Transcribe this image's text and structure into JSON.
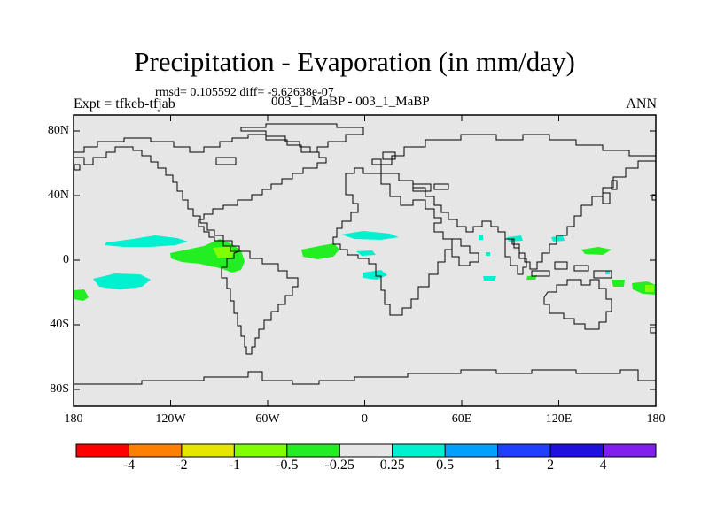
{
  "title": "Precipitation - Evaporation (in mm/day)",
  "stats_line": "rmsd= 0.105592 diff= -9.62638e-07",
  "subtitle": "003_1_MaBP - 003_1_MaBP",
  "left_label": "Expt = tfkeb-tfjab",
  "right_label": "ANN",
  "y_axis": {
    "ticks": [
      "80N",
      "40N",
      "0",
      "40S",
      "80S"
    ],
    "values": [
      80,
      40,
      0,
      -40,
      -80
    ],
    "range": [
      -90,
      90
    ]
  },
  "x_axis": {
    "ticks": [
      "180",
      "120W",
      "60W",
      "0",
      "60E",
      "120E",
      "180"
    ],
    "values": [
      -180,
      -120,
      -60,
      0,
      60,
      120,
      180
    ],
    "range": [
      -180,
      180
    ]
  },
  "colorbar": {
    "colors": [
      "#ff0000",
      "#ff8000",
      "#e6e600",
      "#80ff00",
      "#22ee22",
      "#e6e6e6",
      "#00f0d0",
      "#00a0ff",
      "#2040ff",
      "#2010dd",
      "#8020f0"
    ],
    "labels": [
      "-4",
      "-2",
      "-1",
      "-0.5",
      "-0.25",
      "0.25",
      "0.5",
      "1",
      "2",
      "4"
    ]
  },
  "colors": {
    "land_background": "#e6e6e6",
    "coastline": "#000000"
  }
}
